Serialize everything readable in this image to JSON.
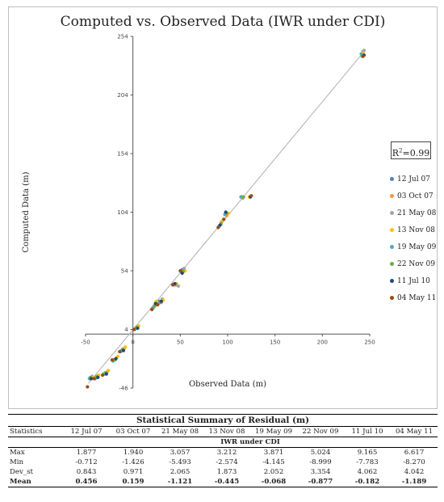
{
  "chart_data": {
    "type": "scatter",
    "title": "Computed vs. Observed Data (IWR under CDI)",
    "xlabel": "Observed Data (m)",
    "ylabel": "Computed Data (m)",
    "xlim": [
      -50,
      250
    ],
    "ylim": [
      -46,
      254
    ],
    "x_ticks": [
      -50,
      0,
      50,
      100,
      150,
      200,
      250
    ],
    "y_ticks": [
      -46,
      4,
      54,
      104,
      154,
      204,
      254
    ],
    "r_squared_label": "R²=0.99",
    "legend_position": "right",
    "grid": false,
    "trendline": true,
    "series": [
      {
        "name": "12 Jul 07",
        "color": "#4f81bd",
        "points": [
          [
            -45,
            -38
          ],
          [
            -40,
            -38
          ],
          [
            -30,
            -34
          ],
          [
            -20,
            -22
          ],
          [
            -12,
            -14
          ],
          [
            3,
            5
          ],
          [
            22,
            23
          ],
          [
            28,
            28
          ],
          [
            45,
            42
          ],
          [
            52,
            55
          ],
          [
            92,
            93
          ],
          [
            98,
            104
          ],
          [
            115,
            117
          ],
          [
            243,
            241
          ]
        ]
      },
      {
        "name": "03 Oct 07",
        "color": "#f79646",
        "points": [
          [
            -44,
            -37
          ],
          [
            -38,
            -37
          ],
          [
            -28,
            -33
          ],
          [
            -18,
            -21
          ],
          [
            -10,
            -13
          ],
          [
            5,
            6
          ],
          [
            24,
            27
          ],
          [
            30,
            27
          ],
          [
            44,
            42
          ],
          [
            53,
            53
          ],
          [
            93,
            95
          ],
          [
            99,
            101
          ],
          [
            116,
            116
          ],
          [
            242,
            238
          ]
        ]
      },
      {
        "name": "21 May 08",
        "color": "#a5a5a5",
        "points": [
          [
            -43,
            -36
          ],
          [
            -37,
            -36
          ],
          [
            -27,
            -32
          ],
          [
            -17,
            -20
          ],
          [
            -9,
            -12
          ],
          [
            4,
            5
          ],
          [
            23,
            25
          ],
          [
            31,
            30
          ],
          [
            48,
            41
          ],
          [
            54,
            56
          ],
          [
            94,
            96
          ],
          [
            100,
            103
          ],
          [
            117,
            117
          ],
          [
            244,
            242
          ]
        ]
      },
      {
        "name": "13 Nov 08",
        "color": "#ffc000",
        "points": [
          [
            -42,
            -37
          ],
          [
            -36,
            -35
          ],
          [
            -26,
            -31
          ],
          [
            -16,
            -19
          ],
          [
            -8,
            -11
          ],
          [
            6,
            7
          ],
          [
            25,
            28
          ],
          [
            32,
            29
          ],
          [
            46,
            43
          ],
          [
            55,
            54
          ],
          [
            95,
            97
          ],
          [
            101,
            103
          ],
          [
            123,
            117
          ],
          [
            243,
            240
          ]
        ]
      },
      {
        "name": "19 May 09",
        "color": "#4bacc6",
        "points": [
          [
            -46,
            -38
          ],
          [
            -39,
            -37
          ],
          [
            -31,
            -34
          ],
          [
            -21,
            -23
          ],
          [
            -13,
            -15
          ],
          [
            2,
            4
          ],
          [
            21,
            22
          ],
          [
            27,
            26
          ],
          [
            43,
            42
          ],
          [
            51,
            53
          ],
          [
            91,
            92
          ],
          [
            97,
            102
          ],
          [
            114,
            117
          ],
          [
            241,
            239
          ]
        ]
      },
      {
        "name": "22 Nov 09",
        "color": "#70ad47",
        "points": [
          [
            -45,
            -37
          ],
          [
            -38,
            -36
          ],
          [
            -29,
            -33
          ],
          [
            -19,
            -22
          ],
          [
            -11,
            -13
          ],
          [
            4,
            6
          ],
          [
            23,
            24
          ],
          [
            29,
            27
          ],
          [
            45,
            43
          ],
          [
            53,
            54
          ],
          [
            93,
            94
          ],
          [
            99,
            103
          ],
          [
            116,
            117
          ],
          [
            242,
            237
          ]
        ]
      },
      {
        "name": "11 Jul 10",
        "color": "#264478",
        "points": [
          [
            -44,
            -38
          ],
          [
            -37,
            -37
          ],
          [
            -28,
            -34
          ],
          [
            -18,
            -21
          ],
          [
            -10,
            -14
          ],
          [
            5,
            5
          ],
          [
            24,
            26
          ],
          [
            30,
            28
          ],
          [
            44,
            43
          ],
          [
            52,
            52
          ],
          [
            92,
            93
          ],
          [
            98,
            104
          ],
          [
            124,
            117
          ],
          [
            244,
            238
          ]
        ]
      },
      {
        "name": "04 May 11",
        "color": "#9e480e",
        "points": [
          [
            -48,
            -45
          ],
          [
            -41,
            -38
          ],
          [
            -32,
            -35
          ],
          [
            -22,
            -22
          ],
          [
            -14,
            -15
          ],
          [
            1,
            4
          ],
          [
            20,
            21
          ],
          [
            26,
            25
          ],
          [
            42,
            42
          ],
          [
            50,
            54
          ],
          [
            90,
            91
          ],
          [
            96,
            98
          ],
          [
            125,
            118
          ],
          [
            243,
            237
          ]
        ]
      }
    ]
  },
  "table": {
    "caption": "Statistical Summary of Residual (m)",
    "corner": "Statistics",
    "columns": [
      "12 Jul 07",
      "03 Oct 07",
      "21 May 08",
      "13 Nov 08",
      "19 May 09",
      "22 Nov 09",
      "11 Jul 10",
      "04 May 11"
    ],
    "group_label": "IWR under CDI",
    "rows": [
      {
        "label": "Max",
        "bold": false,
        "values": [
          "1.877",
          "1.940",
          "3.057",
          "3.212",
          "3.871",
          "5.024",
          "9.165",
          "6.617"
        ]
      },
      {
        "label": "Min",
        "bold": false,
        "values": [
          "-0.712",
          "-1.426",
          "-5.493",
          "-2.574",
          "-4.145",
          "-8.999",
          "-7.783",
          "-8.270"
        ]
      },
      {
        "label": "Dev_st",
        "bold": false,
        "values": [
          "0.843",
          "0.971",
          "2.065",
          "1.873",
          "2.052",
          "3.354",
          "4.062",
          "4.042"
        ]
      },
      {
        "label": "Mean",
        "bold": true,
        "values": [
          "0.456",
          "0.159",
          "-1.121",
          "-0.445",
          "-0.068",
          "-0.877",
          "-0.182",
          "-1.189"
        ]
      }
    ]
  }
}
